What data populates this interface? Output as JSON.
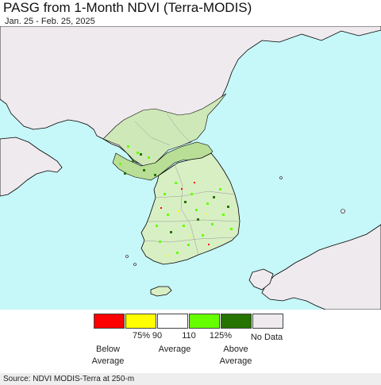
{
  "title": "PASG from 1-Month NDVI (Terra-MODIS)",
  "subtitle": "Jan. 25 - Feb. 25, 2025",
  "legend": {
    "swatches": [
      {
        "name": "below-75",
        "color": "#ff0000"
      },
      {
        "name": "75-90",
        "color": "#ffff00"
      },
      {
        "name": "90-110",
        "color": "#ffffff"
      },
      {
        "name": "110-125",
        "color": "#66ff00"
      },
      {
        "name": "above-125",
        "color": "#267300"
      },
      {
        "name": "no-data",
        "color": "#eeeaee"
      }
    ],
    "ticks": [
      "75%",
      "90",
      "110",
      "125%"
    ],
    "categories": {
      "below": "Below\nAverage",
      "average": "Average",
      "above": "Above\nAverage",
      "nodata": "No Data"
    }
  },
  "colors": {
    "water": "#c6f7f9",
    "land_nodata": "#eeeaee",
    "land_outline": "#000000"
  },
  "source": "Source: NDVI MODIS-Terra at 250-m"
}
